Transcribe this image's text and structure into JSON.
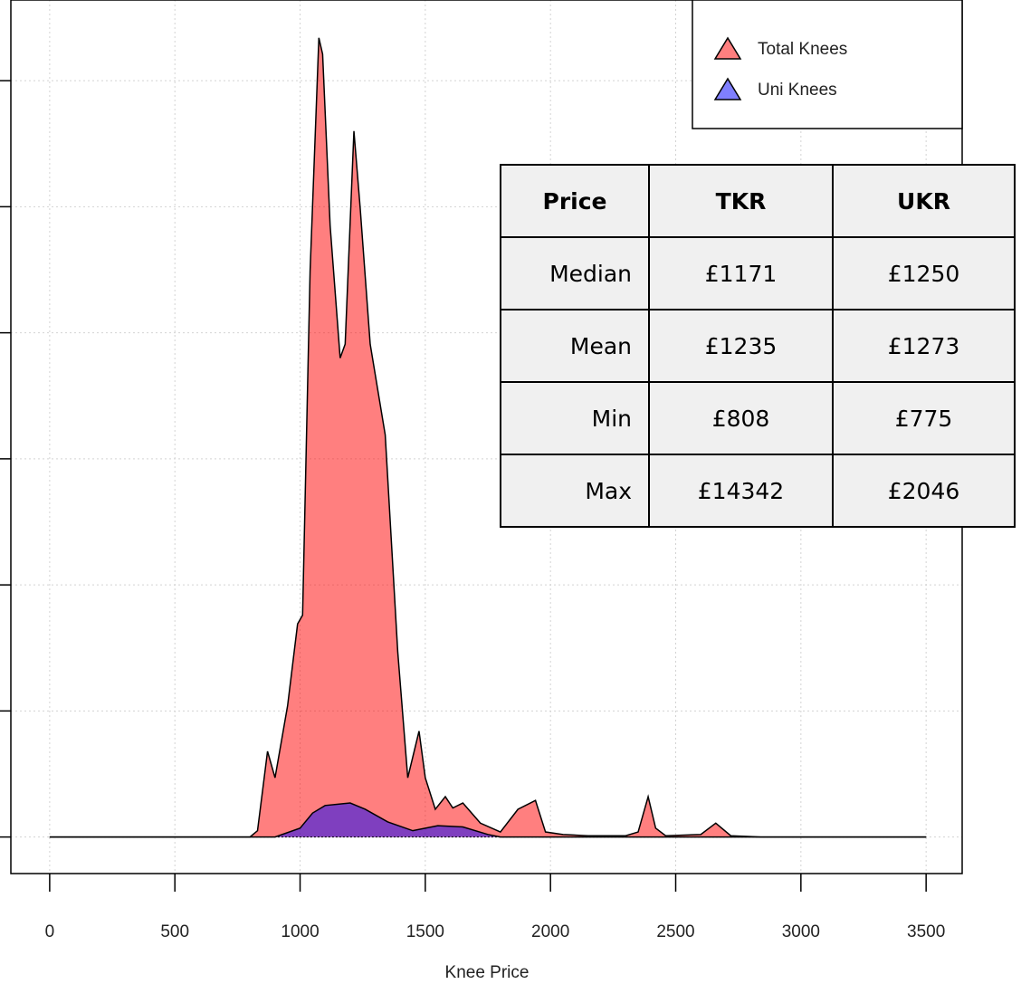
{
  "chart_data": {
    "type": "area",
    "x_label": "Knee Price",
    "xlim": [
      -155,
      3644
    ],
    "xticks": [
      0,
      500,
      1000,
      1500,
      2000,
      2500,
      3000,
      3500
    ],
    "ylim": [
      -0.29,
      6.64
    ],
    "yticks": [
      0,
      1,
      2,
      3,
      4,
      5,
      6
    ],
    "grid": true,
    "legend_position": "top-right",
    "opacity": 0.5,
    "series": [
      {
        "name": "Total Knees",
        "color": "#ff0000",
        "x": [
          0,
          800,
          830,
          870,
          900,
          950,
          990,
          1010,
          1040,
          1075,
          1090,
          1120,
          1160,
          1180,
          1215,
          1240,
          1280,
          1340,
          1390,
          1430,
          1475,
          1500,
          1540,
          1580,
          1610,
          1650,
          1720,
          1800,
          1870,
          1940,
          1980,
          2050,
          2150,
          2300,
          2350,
          2390,
          2420,
          2460,
          2600,
          2660,
          2720,
          2840,
          3500
        ],
        "values": [
          0,
          0,
          0.05,
          0.68,
          0.47,
          1.04,
          1.69,
          1.76,
          4.49,
          6.34,
          6.21,
          4.85,
          3.8,
          3.91,
          5.6,
          4.99,
          3.91,
          3.19,
          1.47,
          0.47,
          0.84,
          0.47,
          0.22,
          0.32,
          0.23,
          0.27,
          0.11,
          0.04,
          0.22,
          0.29,
          0.04,
          0.02,
          0.01,
          0.01,
          0.04,
          0.32,
          0.07,
          0.01,
          0.02,
          0.11,
          0.01,
          0,
          0
        ]
      },
      {
        "name": "Uni Knees",
        "color": "#0000ff",
        "x": [
          0,
          900,
          1000,
          1050,
          1100,
          1200,
          1260,
          1350,
          1450,
          1550,
          1650,
          1750,
          1800,
          3500
        ],
        "values": [
          0,
          0,
          0.07,
          0.19,
          0.25,
          0.27,
          0.22,
          0.12,
          0.05,
          0.09,
          0.08,
          0.02,
          0,
          0
        ]
      }
    ]
  },
  "table": {
    "header": [
      "Price",
      "TKR",
      "UKR"
    ],
    "rows": [
      [
        "Median",
        "£1171",
        "£1250"
      ],
      [
        "Mean",
        "£1235",
        "£1273"
      ],
      [
        "Min",
        "£808",
        "£775"
      ],
      [
        "Max",
        "£14342",
        "£2046"
      ]
    ]
  }
}
